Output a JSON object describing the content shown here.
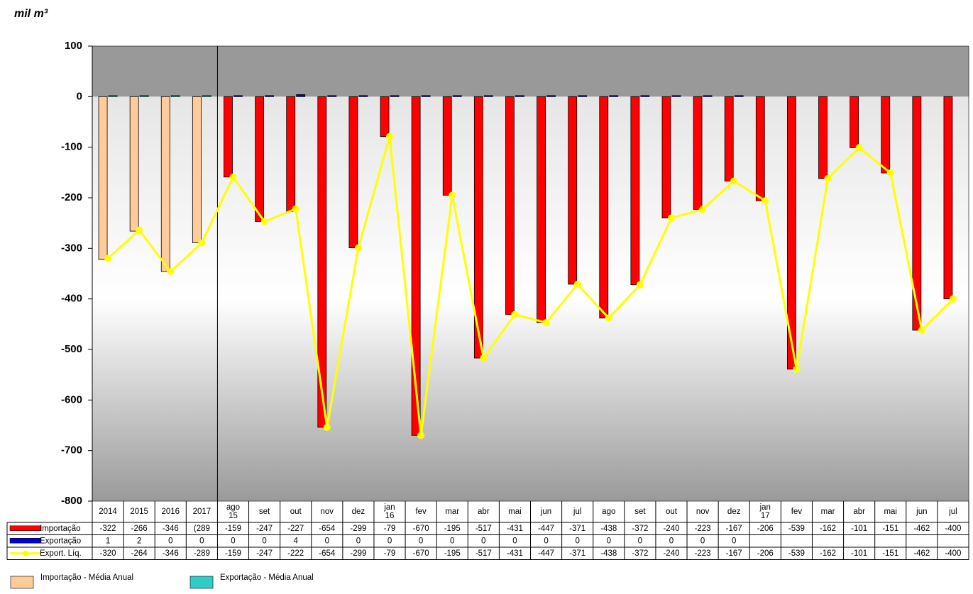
{
  "chart_data": {
    "type": "bar_line_table",
    "y_label": "mil m³",
    "categories": [
      "2014",
      "2015",
      "2016",
      "2017",
      "ago 15",
      "set",
      "out",
      "nov",
      "dez",
      "jan 16",
      "fev",
      "mar",
      "abr",
      "mai",
      "jun",
      "jul",
      "ago",
      "set",
      "out",
      "nov",
      "dez",
      "jan 17",
      "fev",
      "mar",
      "abr",
      "mai",
      "jun",
      "jul"
    ],
    "series": [
      {
        "name": "Importação",
        "type": "bar",
        "color": "#ff0000",
        "colors": [
          "#ffcc99",
          "#ffcc99",
          "#ffcc99",
          "#ffcc99",
          "#ff0000",
          "#ff0000",
          "#ff0000",
          "#ff0000",
          "#ff0000",
          "#ff0000",
          "#ff0000",
          "#ff0000",
          "#ff0000",
          "#ff0000",
          "#ff0000",
          "#ff0000",
          "#ff0000",
          "#ff0000",
          "#ff0000",
          "#ff0000",
          "#ff0000",
          "#ff0000",
          "#ff0000",
          "#ff0000",
          "#ff0000",
          "#ff0000",
          "#ff0000",
          "#ff0000"
        ],
        "values": [
          -322,
          -266,
          -346,
          -289,
          -159,
          -247,
          -227,
          -654,
          -299,
          -79,
          -670,
          -195,
          -517,
          -431,
          -447,
          -371,
          -438,
          -372,
          -240,
          -223,
          -167,
          -206,
          -539,
          -162,
          -101,
          -151,
          -462,
          -400
        ],
        "value_labels": [
          "-322",
          "-266",
          "-346",
          "(289",
          "-159",
          "-247",
          "-227",
          "-654",
          "-299",
          "-79",
          "-670",
          "-195",
          "-517",
          "-431",
          "-447",
          "-371",
          "-438",
          "-372",
          "-240",
          "-223",
          "-167",
          "-206",
          "-539",
          "-162",
          "-101",
          "-151",
          "-462",
          "-400"
        ]
      },
      {
        "name": "Exportação",
        "type": "bar",
        "color": "#0000cc",
        "colors": [
          "#33cccc",
          "#33cccc",
          "#33cccc",
          "#33cccc",
          "#0000cc",
          "#0000cc",
          "#0000cc",
          "#0000cc",
          "#0000cc",
          "#0000cc",
          "#0000cc",
          "#0000cc",
          "#0000cc",
          "#0000cc",
          "#0000cc",
          "#0000cc",
          "#0000cc",
          "#0000cc",
          "#0000cc",
          "#0000cc",
          "#0000cc",
          "#0000cc",
          "#0000cc",
          "#0000cc",
          "#0000cc",
          "#0000cc",
          "#0000cc",
          "#0000cc"
        ],
        "values": [
          1,
          2,
          0,
          0,
          0,
          0,
          4,
          0,
          0,
          0,
          0,
          0,
          0,
          0,
          0,
          0,
          0,
          0,
          0,
          0,
          0,
          null,
          null,
          null,
          null,
          null,
          null,
          null
        ]
      },
      {
        "name": "Export. Líq.",
        "type": "line",
        "color": "#ffff00",
        "values": [
          -320,
          -264,
          -346,
          -289,
          -159,
          -247,
          -222,
          -654,
          -299,
          -79,
          -670,
          -195,
          -517,
          -431,
          -447,
          -371,
          -438,
          -372,
          -240,
          -223,
          -167,
          -206,
          -539,
          -162,
          -101,
          -151,
          -462,
          -400
        ]
      }
    ],
    "extra_legend": [
      {
        "name": "Importação - Média Anual",
        "color": "#ffcc99"
      },
      {
        "name": "Exportação - Média Anual",
        "color": "#33cccc"
      }
    ],
    "ylim": [
      -800,
      100
    ],
    "yticks": [
      -800,
      -700,
      -600,
      -500,
      -400,
      -300,
      -200,
      -100,
      0,
      100
    ]
  }
}
